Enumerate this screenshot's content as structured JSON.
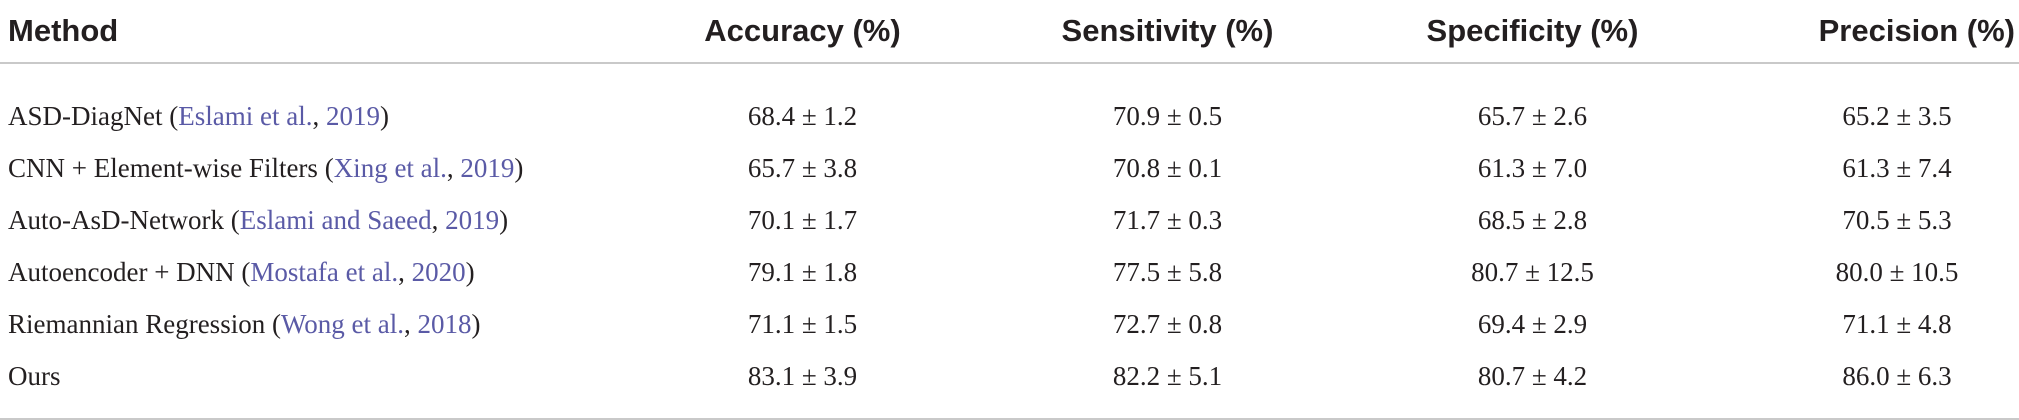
{
  "table": {
    "headers": [
      "Method",
      "Accuracy (%)",
      "Sensitivity (%)",
      "Specificity (%)",
      "Precision (%)"
    ],
    "rows": [
      {
        "method": "ASD-DiagNet",
        "open": " (",
        "ref_authors": "Eslami et al.",
        "sep": ", ",
        "ref_year": "2019",
        "close": ")",
        "accuracy": "68.4 ± 1.2",
        "sensitivity": "70.9 ± 0.5",
        "specificity": "65.7 ± 2.6",
        "precision": "65.2 ± 3.5"
      },
      {
        "method": "CNN + Element-wise Filters",
        "open": " (",
        "ref_authors": "Xing et al.",
        "sep": ", ",
        "ref_year": "2019",
        "close": ")",
        "accuracy": "65.7 ± 3.8",
        "sensitivity": "70.8 ± 0.1",
        "specificity": "61.3 ± 7.0",
        "precision": "61.3 ± 7.4"
      },
      {
        "method": "Auto-AsD-Network",
        "open": " (",
        "ref_authors": "Eslami and Saeed",
        "sep": ", ",
        "ref_year": "2019",
        "close": ")",
        "accuracy": "70.1 ± 1.7",
        "sensitivity": "71.7 ± 0.3",
        "specificity": "68.5 ± 2.8",
        "precision": "70.5 ± 5.3"
      },
      {
        "method": "Autoencoder + DNN",
        "open": " (",
        "ref_authors": "Mostafa et al.",
        "sep": ", ",
        "ref_year": "2020",
        "close": ")",
        "accuracy": "79.1 ± 1.8",
        "sensitivity": "77.5 ± 5.8",
        "specificity": "80.7 ± 12.5",
        "precision": "80.0 ± 10.5"
      },
      {
        "method": "Riemannian Regression",
        "open": " (",
        "ref_authors": "Wong et al.",
        "sep": ", ",
        "ref_year": "2018",
        "close": ")",
        "accuracy": "71.1 ± 1.5",
        "sensitivity": "72.7 ± 0.8",
        "specificity": "69.4 ± 2.9",
        "precision": "71.1 ± 4.8"
      },
      {
        "method": "Ours",
        "accuracy": "83.1 ± 3.9",
        "sensitivity": "82.2 ± 5.1",
        "specificity": "80.7 ± 4.2",
        "precision": "86.0 ± 6.3"
      }
    ]
  },
  "colors": {
    "text": "#231f20",
    "citation_link": "#5a5aa6",
    "rule": "#c9c9c9"
  }
}
